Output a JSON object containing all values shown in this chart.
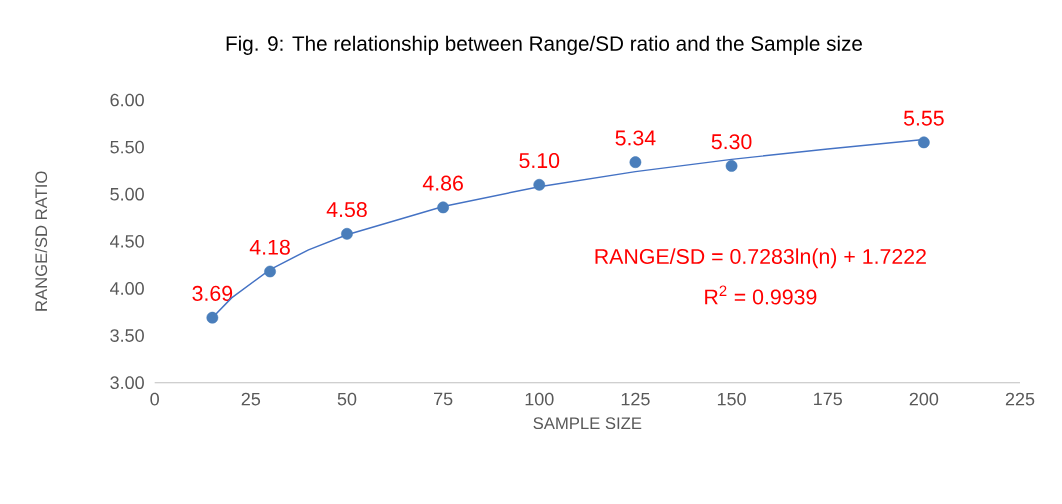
{
  "chart_data": {
    "type": "scatter",
    "title": "Fig. 9: The relationship between Range/SD ratio and the Sample size",
    "xlabel": "SAMPLE SIZE",
    "ylabel": "RANGE/SD RATIO",
    "xlim": [
      0,
      225
    ],
    "xticks": [
      0,
      25,
      50,
      75,
      100,
      125,
      150,
      175,
      200,
      225
    ],
    "ylim": [
      3,
      6
    ],
    "yticks": [
      {
        "value": 3,
        "label": "3.00"
      },
      {
        "value": 3.5,
        "label": "3.50"
      },
      {
        "value": 4,
        "label": "4.00"
      },
      {
        "value": 4.5,
        "label": "4.50"
      },
      {
        "value": 5,
        "label": "5.00"
      },
      {
        "value": 5.5,
        "label": "5.50"
      },
      {
        "value": 6,
        "label": "6.00"
      }
    ],
    "series": [
      {
        "color": "#4a7ebb",
        "marker": "circle",
        "x": [
          15,
          30,
          50,
          75,
          100,
          125,
          150,
          200
        ],
        "values": [
          3.69,
          4.18,
          4.58,
          4.86,
          5.1,
          5.34,
          5.3,
          5.55
        ],
        "value_labels": [
          "3.69",
          "4.18",
          "4.58",
          "4.86",
          "5.10",
          "5.34",
          "5.30",
          "5.55"
        ]
      },
      {
        "type": "line",
        "color": "#4472c4",
        "marker": "none",
        "x": [
          15,
          20,
          30,
          40,
          50,
          75,
          100,
          125,
          150,
          175,
          200
        ],
        "values": [
          3.69,
          3.9,
          4.2,
          4.41,
          4.57,
          4.87,
          5.08,
          5.24,
          5.37,
          5.48,
          5.58
        ]
      }
    ],
    "annotations": [
      "RANGE/SD  = 0.7283ln(n) + 1.7222",
      "R$^{2}$ = 0.9939"
    ]
  }
}
